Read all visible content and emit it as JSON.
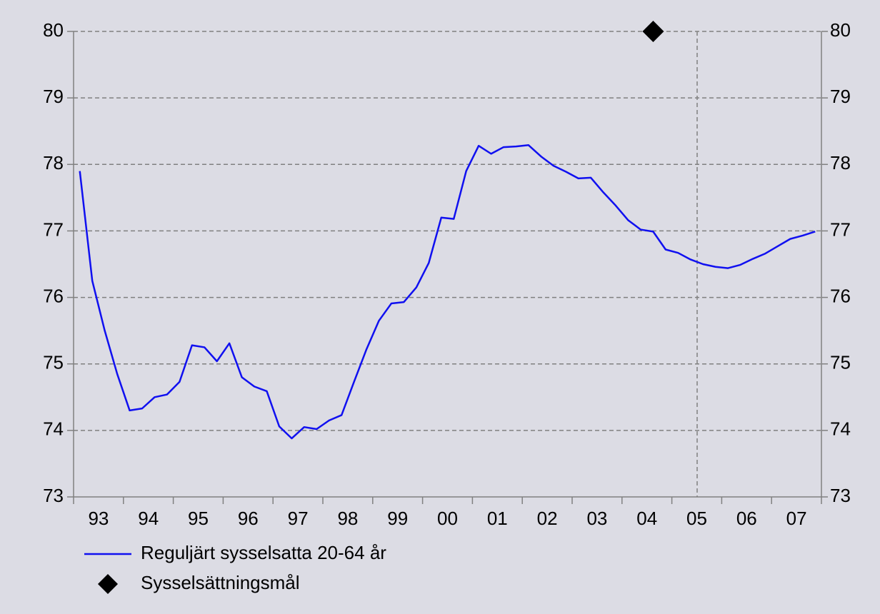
{
  "chart_data": {
    "type": "line",
    "categories": [
      null,
      null,
      "93",
      null,
      null,
      null,
      "94",
      null,
      null,
      null,
      "95",
      null,
      null,
      null,
      "96",
      null,
      null,
      null,
      "97",
      null,
      null,
      null,
      "98",
      null,
      null,
      null,
      "99",
      null,
      null,
      null,
      "00",
      null,
      null,
      null,
      "01",
      null,
      null,
      null,
      "02",
      null,
      null,
      null,
      "03",
      null,
      null,
      null,
      "04",
      null,
      null,
      null,
      "05",
      null,
      null,
      null,
      "06",
      null,
      null,
      null,
      "07",
      null
    ],
    "series": [
      {
        "name": "Reguljärt sysselsatta 20-64 år",
        "color": "#1010f0",
        "marker": "none",
        "values": [
          77.9,
          76.25,
          75.5,
          74.85,
          74.3,
          74.33,
          74.5,
          74.54,
          74.73,
          75.28,
          75.25,
          75.04,
          75.31,
          74.8,
          74.66,
          74.59,
          74.06,
          73.88,
          74.05,
          74.02,
          74.15,
          74.23,
          74.73,
          75.22,
          75.65,
          75.91,
          75.93,
          76.15,
          76.52,
          77.2,
          77.18,
          77.9,
          78.28,
          78.16,
          78.26,
          78.27,
          78.29,
          78.12,
          77.98,
          77.89,
          77.79,
          77.8,
          77.58,
          77.38,
          77.16,
          77.02,
          76.99,
          76.72,
          76.67,
          76.57,
          76.5,
          76.46,
          76.44,
          76.49,
          76.58,
          76.66,
          76.77,
          76.88,
          76.93,
          76.99
        ]
      },
      {
        "name": "Sysselsättningsmål",
        "color": "#000000",
        "marker": "diamond",
        "values": [
          null,
          null,
          null,
          null,
          null,
          null,
          null,
          null,
          null,
          null,
          null,
          null,
          null,
          null,
          null,
          null,
          null,
          null,
          null,
          null,
          null,
          null,
          null,
          null,
          null,
          null,
          null,
          null,
          null,
          null,
          null,
          null,
          null,
          null,
          null,
          null,
          null,
          null,
          null,
          null,
          null,
          null,
          null,
          null,
          null,
          null,
          80,
          null,
          null,
          null,
          null,
          null,
          null,
          null,
          null,
          null,
          null,
          null,
          null,
          null
        ]
      }
    ],
    "ylim": [
      73,
      80
    ],
    "yticks": [
      73,
      74,
      75,
      76,
      77,
      78,
      79,
      80
    ],
    "y2lim": [
      73,
      80
    ],
    "y2ticks": [
      73,
      74,
      75,
      76,
      77,
      78,
      79,
      80
    ],
    "grid": true
  }
}
